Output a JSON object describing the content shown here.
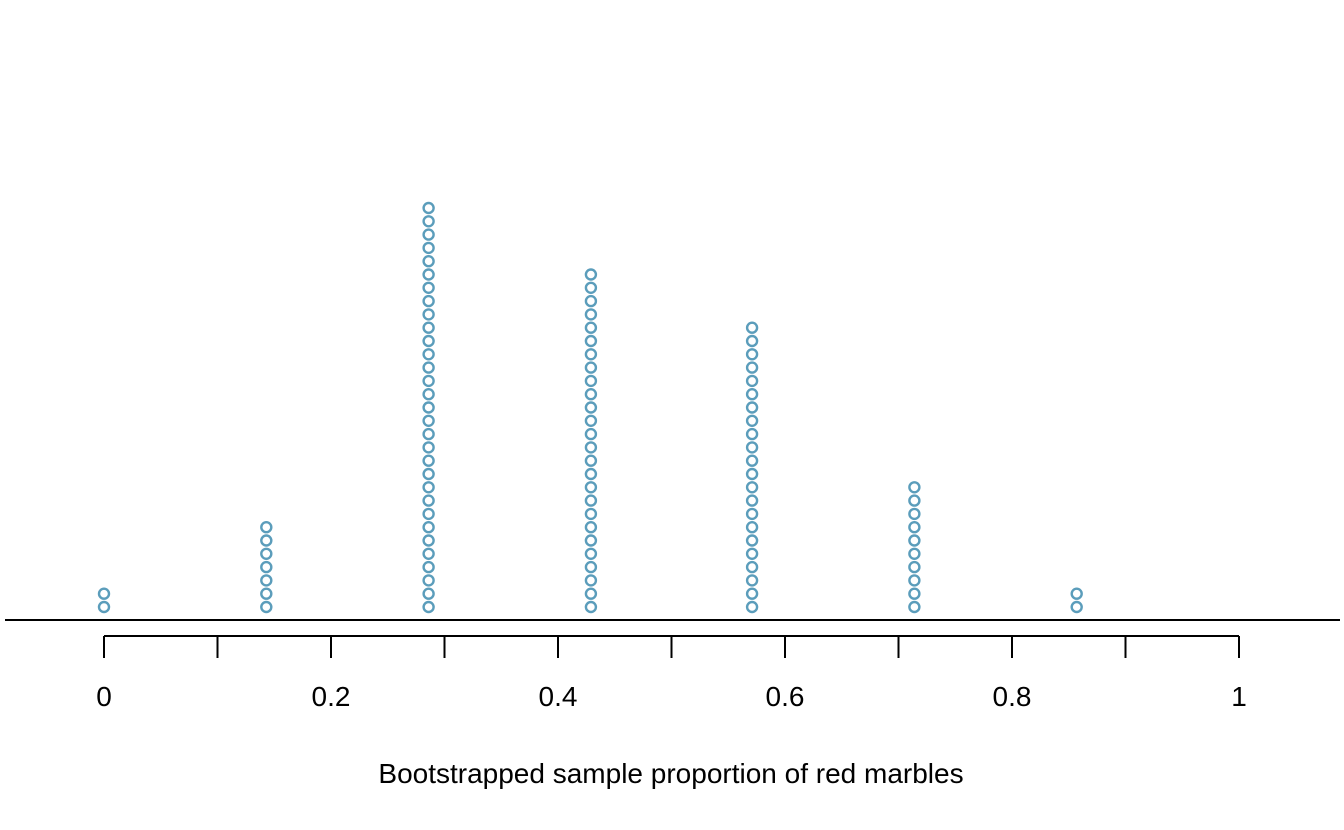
{
  "chart_data": {
    "type": "dot",
    "xlabel": "Bootstrapped sample proportion of red marbles",
    "ylabel": "",
    "xlim": [
      0,
      1
    ],
    "x_ticks": [
      0,
      0.1,
      0.2,
      0.3,
      0.4,
      0.5,
      0.6,
      0.7,
      0.8,
      0.9,
      1
    ],
    "x_tick_labels": [
      {
        "value": 0,
        "label": "0"
      },
      {
        "value": 0.2,
        "label": "0.2"
      },
      {
        "value": 0.4,
        "label": "0.4"
      },
      {
        "value": 0.6,
        "label": "0.6"
      },
      {
        "value": 0.8,
        "label": "0.8"
      },
      {
        "value": 1,
        "label": "1"
      }
    ],
    "points": [
      {
        "x": 0.0,
        "count": 2
      },
      {
        "x": 0.143,
        "count": 7
      },
      {
        "x": 0.286,
        "count": 31
      },
      {
        "x": 0.429,
        "count": 26
      },
      {
        "x": 0.571,
        "count": 22
      },
      {
        "x": 0.714,
        "count": 10
      },
      {
        "x": 0.857,
        "count": 2
      }
    ],
    "marker_color": "#5B9DBB",
    "grid": false
  }
}
